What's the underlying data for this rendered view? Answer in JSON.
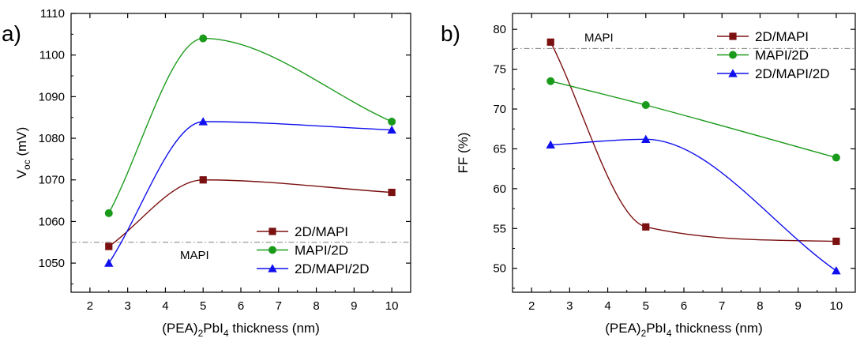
{
  "chart_data": [
    {
      "type": "line",
      "panel_label": "a)",
      "xlabel": "(PEA)2PbI4 thickness (nm)",
      "xlabel_parts": [
        "(PEA)",
        "2",
        "PbI",
        "4",
        " thickness (nm)"
      ],
      "ylabel": "Voc (mV)",
      "ylabel_parts": [
        "V",
        "oc",
        " (mV)"
      ],
      "xlim": [
        1.5,
        10.5
      ],
      "ylim": [
        1043,
        1110
      ],
      "xticks": [
        2,
        3,
        4,
        5,
        6,
        7,
        8,
        9,
        10
      ],
      "yticks": [
        1050,
        1060,
        1070,
        1080,
        1090,
        1100,
        1110
      ],
      "x": [
        2.5,
        5,
        10
      ],
      "reference": {
        "label": "MAPI",
        "value": 1055
      },
      "legend_position": "bottom-right",
      "series": [
        {
          "name": "2D/MAPI",
          "marker": "square",
          "color": "#7b1010",
          "values": [
            1054,
            1070,
            1067
          ]
        },
        {
          "name": "MAPI/2D",
          "marker": "circle",
          "color": "#1a9a1a",
          "values": [
            1062,
            1104,
            1084
          ]
        },
        {
          "name": "2D/MAPI/2D",
          "marker": "triangle",
          "color": "#1010ee",
          "values": [
            1050,
            1084,
            1082
          ]
        }
      ]
    },
    {
      "type": "line",
      "panel_label": "b)",
      "xlabel": "(PEA)2PbI4 thickness (nm)",
      "xlabel_parts": [
        "(PEA)",
        "2",
        "PbI",
        "4",
        " thickness (nm)"
      ],
      "ylabel": "FF (%)",
      "ylabel_parts": [
        "FF (%)",
        "",
        ""
      ],
      "xlim": [
        1.5,
        10.5
      ],
      "ylim": [
        47,
        82
      ],
      "xticks": [
        2,
        3,
        4,
        5,
        6,
        7,
        8,
        9,
        10
      ],
      "yticks": [
        50,
        55,
        60,
        65,
        70,
        75,
        80
      ],
      "x": [
        2.5,
        5,
        10
      ],
      "reference": {
        "label": "MAPI",
        "value": 77.6
      },
      "legend_position": "top-right",
      "series": [
        {
          "name": "2D/MAPI",
          "marker": "square",
          "color": "#7b1010",
          "values": [
            78.4,
            55.2,
            53.4
          ]
        },
        {
          "name": "MAPI/2D",
          "marker": "circle",
          "color": "#1a9a1a",
          "values": [
            73.5,
            70.5,
            63.9
          ]
        },
        {
          "name": "2D/MAPI/2D",
          "marker": "triangle",
          "color": "#1010ee",
          "values": [
            65.5,
            66.2,
            49.7
          ]
        }
      ]
    }
  ]
}
